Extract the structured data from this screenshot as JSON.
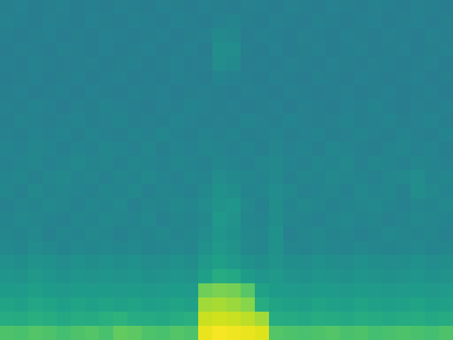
{
  "chart_data": {
    "type": "heatmap",
    "color": "Viridis",
    "tick_labels": false,
    "zlim": [
      0,
      1
    ],
    "cells": [
      [
        0.72,
        0.71,
        0.73,
        0.72,
        0.7,
        0.72,
        0.73,
        0.71,
        0.76,
        0.75,
        0.72,
        0.71,
        0.73,
        0.72,
        0.97,
        0.99,
        0.98,
        0.97,
        0.95,
        0.73,
        0.72,
        0.71,
        0.72,
        0.73,
        0.71,
        0.72,
        0.7,
        0.71,
        0.72,
        0.71,
        0.7,
        0.72
      ],
      [
        0.62,
        0.61,
        0.63,
        0.62,
        0.6,
        0.62,
        0.61,
        0.63,
        0.64,
        0.62,
        0.61,
        0.6,
        0.62,
        0.63,
        0.92,
        0.93,
        0.92,
        0.9,
        0.86,
        0.62,
        0.61,
        0.6,
        0.62,
        0.61,
        0.6,
        0.62,
        0.61,
        0.6,
        0.61,
        0.62,
        0.6,
        0.61
      ],
      [
        0.58,
        0.57,
        0.59,
        0.58,
        0.56,
        0.58,
        0.57,
        0.58,
        0.57,
        0.58,
        0.56,
        0.57,
        0.58,
        0.57,
        0.86,
        0.87,
        0.85,
        0.82,
        0.62,
        0.58,
        0.57,
        0.56,
        0.58,
        0.57,
        0.56,
        0.58,
        0.57,
        0.56,
        0.57,
        0.58,
        0.56,
        0.57
      ],
      [
        0.55,
        0.54,
        0.56,
        0.55,
        0.53,
        0.55,
        0.54,
        0.55,
        0.54,
        0.55,
        0.53,
        0.54,
        0.55,
        0.54,
        0.78,
        0.8,
        0.79,
        0.74,
        0.57,
        0.55,
        0.54,
        0.53,
        0.55,
        0.54,
        0.53,
        0.55,
        0.54,
        0.53,
        0.54,
        0.55,
        0.53,
        0.54
      ],
      [
        0.52,
        0.51,
        0.53,
        0.52,
        0.5,
        0.52,
        0.51,
        0.52,
        0.51,
        0.52,
        0.5,
        0.51,
        0.52,
        0.51,
        0.56,
        0.62,
        0.6,
        0.55,
        0.52,
        0.53,
        0.51,
        0.5,
        0.52,
        0.51,
        0.5,
        0.52,
        0.51,
        0.5,
        0.51,
        0.52,
        0.5,
        0.51
      ],
      [
        0.5,
        0.49,
        0.51,
        0.5,
        0.48,
        0.5,
        0.49,
        0.5,
        0.49,
        0.5,
        0.48,
        0.49,
        0.5,
        0.49,
        0.53,
        0.56,
        0.53,
        0.5,
        0.49,
        0.51,
        0.49,
        0.48,
        0.5,
        0.49,
        0.48,
        0.5,
        0.49,
        0.48,
        0.49,
        0.5,
        0.48,
        0.49
      ],
      [
        0.47,
        0.46,
        0.48,
        0.47,
        0.45,
        0.47,
        0.46,
        0.47,
        0.46,
        0.47,
        0.45,
        0.46,
        0.47,
        0.46,
        0.5,
        0.53,
        0.51,
        0.47,
        0.46,
        0.5,
        0.46,
        0.45,
        0.47,
        0.46,
        0.45,
        0.47,
        0.46,
        0.45,
        0.46,
        0.47,
        0.45,
        0.46
      ],
      [
        0.46,
        0.45,
        0.47,
        0.44,
        0.46,
        0.45,
        0.47,
        0.46,
        0.44,
        0.46,
        0.45,
        0.47,
        0.45,
        0.46,
        0.48,
        0.52,
        0.5,
        0.47,
        0.46,
        0.5,
        0.44,
        0.46,
        0.47,
        0.45,
        0.46,
        0.44,
        0.45,
        0.47,
        0.46,
        0.45,
        0.46,
        0.44
      ],
      [
        0.45,
        0.47,
        0.46,
        0.45,
        0.44,
        0.46,
        0.45,
        0.47,
        0.46,
        0.45,
        0.47,
        0.44,
        0.46,
        0.45,
        0.47,
        0.53,
        0.51,
        0.46,
        0.45,
        0.49,
        0.46,
        0.45,
        0.44,
        0.46,
        0.47,
        0.45,
        0.46,
        0.44,
        0.45,
        0.47,
        0.46,
        0.45
      ],
      [
        0.44,
        0.46,
        0.45,
        0.47,
        0.46,
        0.44,
        0.46,
        0.45,
        0.47,
        0.44,
        0.46,
        0.45,
        0.47,
        0.46,
        0.48,
        0.51,
        0.52,
        0.47,
        0.44,
        0.49,
        0.45,
        0.47,
        0.46,
        0.44,
        0.45,
        0.46,
        0.47,
        0.45,
        0.44,
        0.46,
        0.45,
        0.47
      ],
      [
        0.46,
        0.44,
        0.47,
        0.45,
        0.46,
        0.45,
        0.44,
        0.46,
        0.45,
        0.47,
        0.44,
        0.46,
        0.45,
        0.44,
        0.47,
        0.5,
        0.49,
        0.45,
        0.46,
        0.48,
        0.47,
        0.44,
        0.45,
        0.46,
        0.44,
        0.47,
        0.45,
        0.46,
        0.44,
        0.49,
        0.47,
        0.45
      ],
      [
        0.45,
        0.46,
        0.44,
        0.46,
        0.47,
        0.45,
        0.46,
        0.44,
        0.46,
        0.45,
        0.47,
        0.45,
        0.44,
        0.46,
        0.45,
        0.48,
        0.47,
        0.46,
        0.45,
        0.47,
        0.44,
        0.46,
        0.45,
        0.47,
        0.46,
        0.45,
        0.44,
        0.46,
        0.47,
        0.48,
        0.45,
        0.46
      ],
      [
        0.44,
        0.45,
        0.46,
        0.44,
        0.45,
        0.47,
        0.45,
        0.46,
        0.44,
        0.46,
        0.45,
        0.44,
        0.46,
        0.45,
        0.44,
        0.46,
        0.45,
        0.44,
        0.46,
        0.47,
        0.45,
        0.44,
        0.46,
        0.45,
        0.47,
        0.44,
        0.46,
        0.45,
        0.44,
        0.46,
        0.45,
        0.44
      ],
      [
        0.45,
        0.44,
        0.46,
        0.45,
        0.43,
        0.45,
        0.44,
        0.46,
        0.45,
        0.44,
        0.46,
        0.43,
        0.45,
        0.44,
        0.46,
        0.45,
        0.44,
        0.45,
        0.43,
        0.46,
        0.44,
        0.45,
        0.43,
        0.46,
        0.45,
        0.44,
        0.43,
        0.45,
        0.46,
        0.44,
        0.45,
        0.43
      ],
      [
        0.44,
        0.43,
        0.45,
        0.44,
        0.45,
        0.43,
        0.45,
        0.44,
        0.43,
        0.45,
        0.44,
        0.46,
        0.44,
        0.43,
        0.45,
        0.44,
        0.45,
        0.43,
        0.44,
        0.45,
        0.43,
        0.44,
        0.45,
        0.43,
        0.44,
        0.45,
        0.44,
        0.43,
        0.45,
        0.44,
        0.43,
        0.45
      ],
      [
        0.43,
        0.45,
        0.44,
        0.43,
        0.44,
        0.45,
        0.43,
        0.44,
        0.45,
        0.43,
        0.44,
        0.43,
        0.45,
        0.44,
        0.43,
        0.44,
        0.43,
        0.45,
        0.44,
        0.43,
        0.45,
        0.44,
        0.43,
        0.44,
        0.45,
        0.43,
        0.44,
        0.45,
        0.43,
        0.44,
        0.45,
        0.43
      ],
      [
        0.44,
        0.43,
        0.45,
        0.44,
        0.42,
        0.44,
        0.43,
        0.45,
        0.44,
        0.43,
        0.42,
        0.44,
        0.43,
        0.45,
        0.44,
        0.43,
        0.44,
        0.42,
        0.43,
        0.44,
        0.42,
        0.44,
        0.43,
        0.42,
        0.44,
        0.43,
        0.45,
        0.43,
        0.42,
        0.44,
        0.43,
        0.44
      ],
      [
        0.43,
        0.44,
        0.42,
        0.43,
        0.44,
        0.42,
        0.44,
        0.43,
        0.42,
        0.44,
        0.43,
        0.44,
        0.42,
        0.43,
        0.44,
        0.43,
        0.42,
        0.44,
        0.43,
        0.42,
        0.44,
        0.43,
        0.42,
        0.43,
        0.44,
        0.42,
        0.43,
        0.44,
        0.42,
        0.43,
        0.44,
        0.42
      ],
      [
        0.42,
        0.43,
        0.44,
        0.42,
        0.43,
        0.44,
        0.42,
        0.43,
        0.44,
        0.42,
        0.43,
        0.42,
        0.44,
        0.43,
        0.42,
        0.45,
        0.44,
        0.43,
        0.42,
        0.44,
        0.43,
        0.42,
        0.44,
        0.43,
        0.42,
        0.44,
        0.43,
        0.42,
        0.43,
        0.44,
        0.42,
        0.43
      ],
      [
        0.43,
        0.42,
        0.44,
        0.43,
        0.42,
        0.43,
        0.44,
        0.42,
        0.43,
        0.44,
        0.42,
        0.43,
        0.44,
        0.42,
        0.43,
        0.48,
        0.47,
        0.42,
        0.43,
        0.42,
        0.44,
        0.43,
        0.42,
        0.44,
        0.43,
        0.42,
        0.44,
        0.43,
        0.42,
        0.43,
        0.44,
        0.42
      ],
      [
        0.42,
        0.44,
        0.43,
        0.42,
        0.44,
        0.43,
        0.42,
        0.44,
        0.42,
        0.43,
        0.44,
        0.42,
        0.43,
        0.44,
        0.42,
        0.49,
        0.48,
        0.43,
        0.42,
        0.44,
        0.42,
        0.43,
        0.44,
        0.42,
        0.43,
        0.44,
        0.42,
        0.43,
        0.44,
        0.42,
        0.43,
        0.44
      ],
      [
        0.43,
        0.42,
        0.43,
        0.44,
        0.42,
        0.43,
        0.42,
        0.44,
        0.43,
        0.42,
        0.43,
        0.44,
        0.42,
        0.43,
        0.44,
        0.47,
        0.46,
        0.42,
        0.44,
        0.43,
        0.42,
        0.44,
        0.43,
        0.42,
        0.44,
        0.43,
        0.42,
        0.44,
        0.43,
        0.42,
        0.44,
        0.43
      ],
      [
        0.44,
        0.43,
        0.42,
        0.44,
        0.43,
        0.42,
        0.44,
        0.43,
        0.42,
        0.44,
        0.43,
        0.42,
        0.44,
        0.43,
        0.42,
        0.44,
        0.45,
        0.43,
        0.42,
        0.44,
        0.43,
        0.42,
        0.44,
        0.43,
        0.42,
        0.43,
        0.44,
        0.42,
        0.43,
        0.44,
        0.42,
        0.43
      ],
      [
        0.43,
        0.44,
        0.42,
        0.43,
        0.44,
        0.42,
        0.43,
        0.42,
        0.44,
        0.43,
        0.42,
        0.44,
        0.43,
        0.42,
        0.44,
        0.43,
        0.42,
        0.44,
        0.43,
        0.42,
        0.44,
        0.43,
        0.42,
        0.44,
        0.43,
        0.42,
        0.44,
        0.43,
        0.42,
        0.44,
        0.43,
        0.42
      ]
    ]
  }
}
